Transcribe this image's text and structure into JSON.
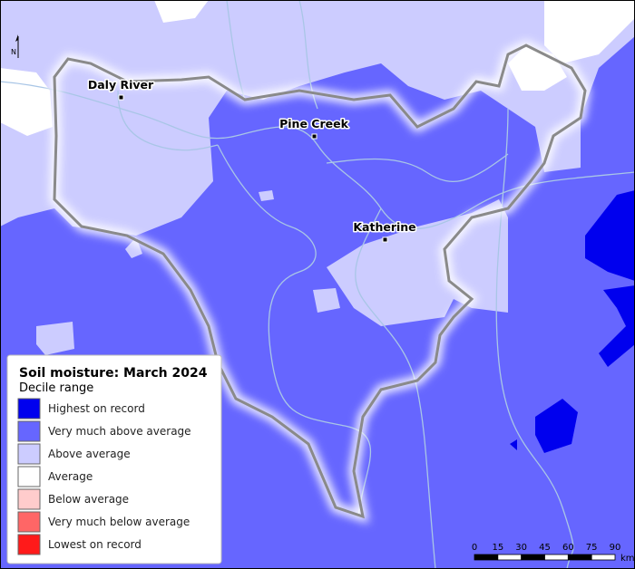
{
  "map": {
    "towns": [
      {
        "name": "Daly River"
      },
      {
        "name": "Pine Creek"
      },
      {
        "name": "Katherine"
      }
    ],
    "north": "N",
    "legend": {
      "title": "Soil moisture: March 2024",
      "subtitle": "Decile range",
      "items": [
        {
          "label": "Highest on record",
          "color": "#0000ee"
        },
        {
          "label": "Very much above average",
          "color": "#6666ff"
        },
        {
          "label": "Above average",
          "color": "#ccccff"
        },
        {
          "label": "Average",
          "color": "#ffffff"
        },
        {
          "label": "Below average",
          "color": "#ffcccc"
        },
        {
          "label": "Very much below average",
          "color": "#ff6666"
        },
        {
          "label": "Lowest on record",
          "color": "#ff1a1a"
        }
      ]
    },
    "scale": {
      "ticks": [
        0,
        15,
        30,
        45,
        60,
        75,
        90
      ],
      "unit": "km"
    }
  }
}
